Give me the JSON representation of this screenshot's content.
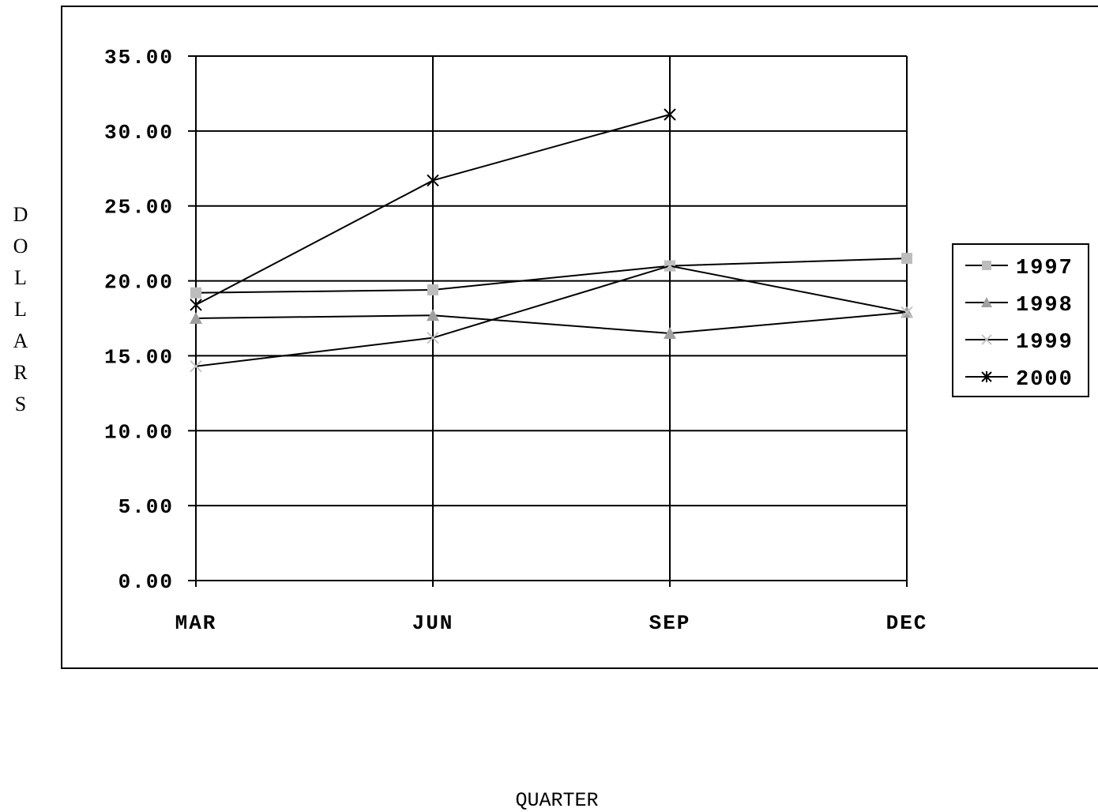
{
  "chart_data": {
    "type": "line",
    "title": "",
    "xlabel": "QUARTER",
    "ylabel": "DOLLARS",
    "categories": [
      "MAR",
      "JUN",
      "SEP",
      "DEC"
    ],
    "y_tick_labels": [
      "0.00",
      "5.00",
      "10.00",
      "15.00",
      "20.00",
      "25.00",
      "30.00",
      "35.00"
    ],
    "ylim": [
      0,
      35
    ],
    "grid": true,
    "legend_position": "right",
    "series": [
      {
        "name": "1997",
        "marker": "square",
        "color": "#bdbdbd",
        "values": [
          19.2,
          19.4,
          21.0,
          21.5
        ]
      },
      {
        "name": "1998",
        "marker": "triangle",
        "color": "#a0a0a0",
        "values": [
          17.5,
          17.7,
          16.5,
          17.9
        ]
      },
      {
        "name": "1999",
        "marker": "x",
        "color": "#c4c4c4",
        "values": [
          14.3,
          16.2,
          21.0,
          17.9
        ]
      },
      {
        "name": "2000",
        "marker": "star",
        "color": "#000000",
        "values": [
          18.4,
          26.7,
          31.1,
          null
        ]
      }
    ]
  }
}
